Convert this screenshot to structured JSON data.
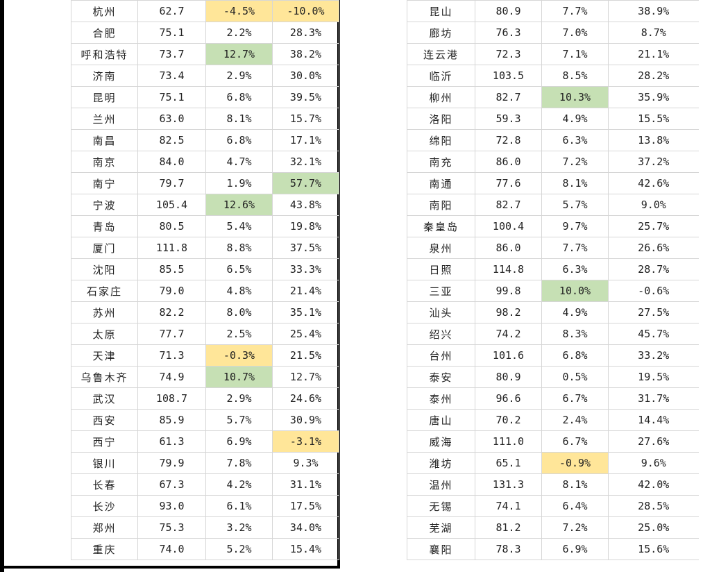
{
  "left_table": {
    "rows": [
      {
        "city": "杭州",
        "value": "62.7",
        "change1": "-4.5%",
        "change2": "-10.0%",
        "hl1": "yellow",
        "hl2": "yellow"
      },
      {
        "city": "合肥",
        "value": "75.1",
        "change1": "2.2%",
        "change2": "28.3%",
        "hl1": "",
        "hl2": ""
      },
      {
        "city": "呼和浩特",
        "value": "73.7",
        "change1": "12.7%",
        "change2": "38.2%",
        "hl1": "green",
        "hl2": ""
      },
      {
        "city": "济南",
        "value": "73.4",
        "change1": "2.9%",
        "change2": "30.0%",
        "hl1": "",
        "hl2": ""
      },
      {
        "city": "昆明",
        "value": "75.1",
        "change1": "6.8%",
        "change2": "39.5%",
        "hl1": "",
        "hl2": ""
      },
      {
        "city": "兰州",
        "value": "63.0",
        "change1": "8.1%",
        "change2": "15.7%",
        "hl1": "",
        "hl2": ""
      },
      {
        "city": "南昌",
        "value": "82.5",
        "change1": "6.8%",
        "change2": "17.1%",
        "hl1": "",
        "hl2": ""
      },
      {
        "city": "南京",
        "value": "84.0",
        "change1": "4.7%",
        "change2": "32.1%",
        "hl1": "",
        "hl2": ""
      },
      {
        "city": "南宁",
        "value": "79.7",
        "change1": "1.9%",
        "change2": "57.7%",
        "hl1": "",
        "hl2": "green"
      },
      {
        "city": "宁波",
        "value": "105.4",
        "change1": "12.6%",
        "change2": "43.8%",
        "hl1": "green",
        "hl2": ""
      },
      {
        "city": "青岛",
        "value": "80.5",
        "change1": "5.4%",
        "change2": "19.8%",
        "hl1": "",
        "hl2": ""
      },
      {
        "city": "厦门",
        "value": "111.8",
        "change1": "8.8%",
        "change2": "37.5%",
        "hl1": "",
        "hl2": ""
      },
      {
        "city": "沈阳",
        "value": "85.5",
        "change1": "6.5%",
        "change2": "33.3%",
        "hl1": "",
        "hl2": ""
      },
      {
        "city": "石家庄",
        "value": "79.0",
        "change1": "4.8%",
        "change2": "21.4%",
        "hl1": "",
        "hl2": ""
      },
      {
        "city": "苏州",
        "value": "82.2",
        "change1": "8.0%",
        "change2": "35.1%",
        "hl1": "",
        "hl2": ""
      },
      {
        "city": "太原",
        "value": "77.7",
        "change1": "2.5%",
        "change2": "25.4%",
        "hl1": "",
        "hl2": ""
      },
      {
        "city": "天津",
        "value": "71.3",
        "change1": "-0.3%",
        "change2": "21.5%",
        "hl1": "yellow",
        "hl2": ""
      },
      {
        "city": "乌鲁木齐",
        "value": "74.9",
        "change1": "10.7%",
        "change2": "12.7%",
        "hl1": "green",
        "hl2": ""
      },
      {
        "city": "武汉",
        "value": "108.7",
        "change1": "2.9%",
        "change2": "24.6%",
        "hl1": "",
        "hl2": ""
      },
      {
        "city": "西安",
        "value": "85.9",
        "change1": "5.7%",
        "change2": "30.9%",
        "hl1": "",
        "hl2": ""
      },
      {
        "city": "西宁",
        "value": "61.3",
        "change1": "6.9%",
        "change2": "-3.1%",
        "hl1": "",
        "hl2": "yellow"
      },
      {
        "city": "银川",
        "value": "79.9",
        "change1": "7.8%",
        "change2": "9.3%",
        "hl1": "",
        "hl2": ""
      },
      {
        "city": "长春",
        "value": "67.3",
        "change1": "4.2%",
        "change2": "31.1%",
        "hl1": "",
        "hl2": ""
      },
      {
        "city": "长沙",
        "value": "93.0",
        "change1": "6.1%",
        "change2": "17.5%",
        "hl1": "",
        "hl2": ""
      },
      {
        "city": "郑州",
        "value": "75.3",
        "change1": "3.2%",
        "change2": "34.0%",
        "hl1": "",
        "hl2": ""
      },
      {
        "city": "重庆",
        "value": "74.0",
        "change1": "5.2%",
        "change2": "15.4%",
        "hl1": "",
        "hl2": ""
      }
    ]
  },
  "right_table": {
    "rows": [
      {
        "city": "昆山",
        "value": "80.9",
        "change1": "7.7%",
        "change2": "38.9%",
        "hl1": "",
        "hl2": ""
      },
      {
        "city": "廊坊",
        "value": "76.3",
        "change1": "7.0%",
        "change2": "8.7%",
        "hl1": "",
        "hl2": ""
      },
      {
        "city": "连云港",
        "value": "72.3",
        "change1": "7.1%",
        "change2": "21.1%",
        "hl1": "",
        "hl2": ""
      },
      {
        "city": "临沂",
        "value": "103.5",
        "change1": "8.5%",
        "change2": "28.2%",
        "hl1": "",
        "hl2": ""
      },
      {
        "city": "柳州",
        "value": "82.7",
        "change1": "10.3%",
        "change2": "35.9%",
        "hl1": "green",
        "hl2": ""
      },
      {
        "city": "洛阳",
        "value": "59.3",
        "change1": "4.9%",
        "change2": "15.5%",
        "hl1": "",
        "hl2": ""
      },
      {
        "city": "绵阳",
        "value": "72.8",
        "change1": "6.3%",
        "change2": "13.8%",
        "hl1": "",
        "hl2": ""
      },
      {
        "city": "南充",
        "value": "86.0",
        "change1": "7.2%",
        "change2": "37.2%",
        "hl1": "",
        "hl2": ""
      },
      {
        "city": "南通",
        "value": "77.6",
        "change1": "8.1%",
        "change2": "42.6%",
        "hl1": "",
        "hl2": ""
      },
      {
        "city": "南阳",
        "value": "82.7",
        "change1": "5.7%",
        "change2": "9.0%",
        "hl1": "",
        "hl2": ""
      },
      {
        "city": "秦皇岛",
        "value": "100.4",
        "change1": "9.7%",
        "change2": "25.7%",
        "hl1": "",
        "hl2": ""
      },
      {
        "city": "泉州",
        "value": "86.0",
        "change1": "7.7%",
        "change2": "26.6%",
        "hl1": "",
        "hl2": ""
      },
      {
        "city": "日照",
        "value": "114.8",
        "change1": "6.3%",
        "change2": "28.7%",
        "hl1": "",
        "hl2": ""
      },
      {
        "city": "三亚",
        "value": "99.8",
        "change1": "10.0%",
        "change2": "-0.6%",
        "hl1": "green",
        "hl2": ""
      },
      {
        "city": "汕头",
        "value": "98.2",
        "change1": "4.9%",
        "change2": "27.5%",
        "hl1": "",
        "hl2": ""
      },
      {
        "city": "绍兴",
        "value": "74.2",
        "change1": "8.3%",
        "change2": "45.7%",
        "hl1": "",
        "hl2": ""
      },
      {
        "city": "台州",
        "value": "101.6",
        "change1": "6.8%",
        "change2": "33.2%",
        "hl1": "",
        "hl2": ""
      },
      {
        "city": "泰安",
        "value": "80.9",
        "change1": "0.5%",
        "change2": "19.5%",
        "hl1": "",
        "hl2": ""
      },
      {
        "city": "泰州",
        "value": "96.6",
        "change1": "6.7%",
        "change2": "31.7%",
        "hl1": "",
        "hl2": ""
      },
      {
        "city": "唐山",
        "value": "70.2",
        "change1": "2.4%",
        "change2": "14.4%",
        "hl1": "",
        "hl2": ""
      },
      {
        "city": "威海",
        "value": "111.0",
        "change1": "6.7%",
        "change2": "27.6%",
        "hl1": "",
        "hl2": ""
      },
      {
        "city": "潍坊",
        "value": "65.1",
        "change1": "-0.9%",
        "change2": "9.6%",
        "hl1": "yellow",
        "hl2": ""
      },
      {
        "city": "温州",
        "value": "131.3",
        "change1": "8.1%",
        "change2": "42.0%",
        "hl1": "",
        "hl2": ""
      },
      {
        "city": "无锡",
        "value": "74.1",
        "change1": "6.4%",
        "change2": "28.5%",
        "hl1": "",
        "hl2": ""
      },
      {
        "city": "芜湖",
        "value": "81.2",
        "change1": "7.2%",
        "change2": "25.0%",
        "hl1": "",
        "hl2": ""
      },
      {
        "city": "襄阳",
        "value": "78.3",
        "change1": "6.9%",
        "change2": "15.6%",
        "hl1": "",
        "hl2": ""
      }
    ]
  },
  "colors": {
    "highlight_green": "#c6e0b4",
    "highlight_yellow": "#ffe699"
  }
}
